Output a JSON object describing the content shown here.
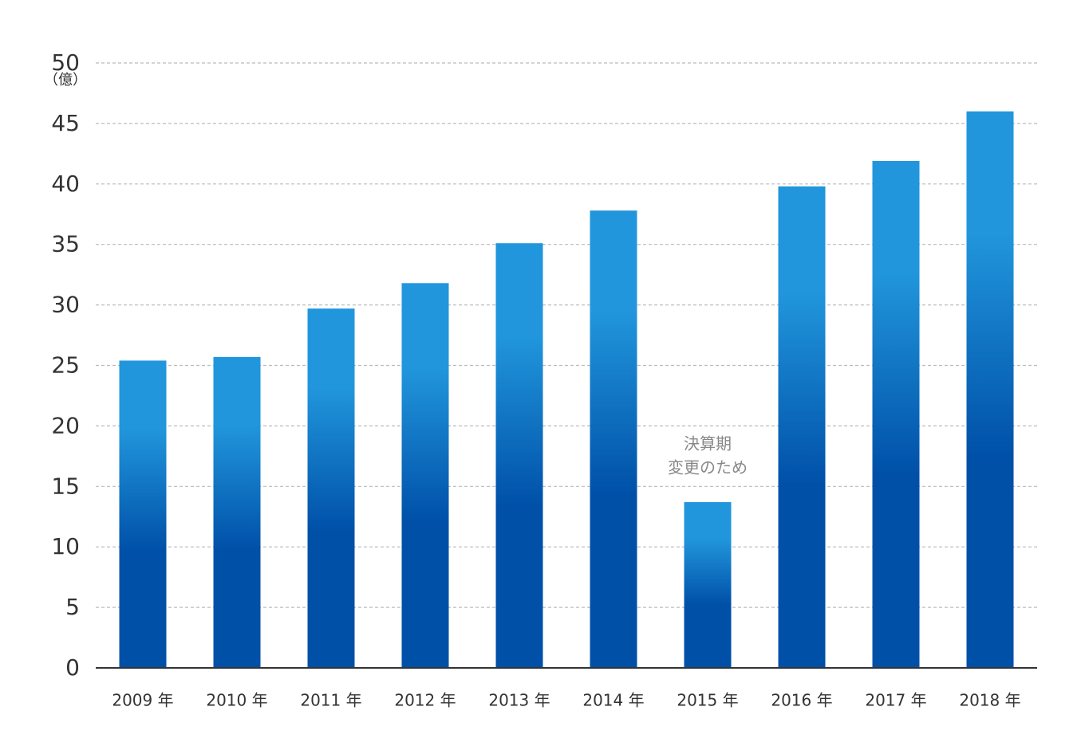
{
  "chart_data": {
    "type": "bar",
    "categories": [
      "2009 年",
      "2010 年",
      "2011 年",
      "2012 年",
      "2013 年",
      "2014 年",
      "2015 年",
      "2016 年",
      "2017 年",
      "2018 年"
    ],
    "values": [
      25.4,
      25.7,
      29.7,
      31.8,
      35.1,
      37.8,
      13.7,
      39.8,
      41.9,
      46.0
    ],
    "title": "",
    "xlabel": "",
    "ylabel": "",
    "unit_label": "（億）",
    "ylim": [
      0,
      50
    ],
    "yticks": [
      0,
      5,
      10,
      15,
      20,
      25,
      30,
      35,
      40,
      45,
      50
    ],
    "grid": "horizontal dashed",
    "annotation": {
      "category_index": 6,
      "lines": [
        "決算期",
        "変更のため"
      ]
    },
    "colors": {
      "bar_top": "#2196dc",
      "bar_bottom": "#0050a8",
      "grid": "#bbbbbb",
      "axis": "#333333",
      "annotation_text": "#888888"
    }
  }
}
